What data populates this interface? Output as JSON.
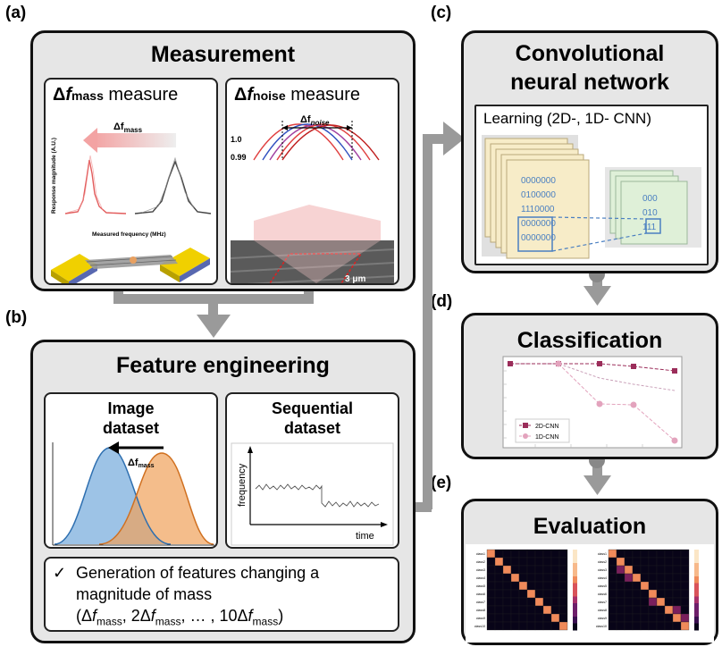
{
  "panel_labels": {
    "a": "(a)",
    "b": "(b)",
    "c": "(c)",
    "d": "(d)",
    "e": "(e)"
  },
  "measurement": {
    "title": "Measurement",
    "mass_card": {
      "delta": "Δ",
      "f": "f",
      "sub": "mass",
      "word": "measure",
      "plot_ylabel": "Response magnitude (A.U.)",
      "plot_xlabel": "Measured frequency (MHz)",
      "plot_arrow_label": "Δf",
      "plot_arrow_sub": "mass"
    },
    "noise_card": {
      "delta": "Δ",
      "f": "f",
      "sub": "noise",
      "word": "measure",
      "ytick_1": "1.0",
      "ytick_2": "0.99",
      "arrow_label": "Δf",
      "arrow_sub": "noise",
      "scale_bar": "3 μm"
    }
  },
  "feature_engineering": {
    "title": "Feature engineering",
    "image_card": {
      "title_line1": "Image",
      "title_line2": "dataset",
      "arrow_label": "Δf",
      "arrow_sub": "mass"
    },
    "sequential_card": {
      "title_line1": "Sequential",
      "title_line2": "dataset",
      "ylabel": "frequency",
      "xlabel": "time"
    },
    "generation": {
      "check": "✓",
      "line1": "Generation of features changing a",
      "line2": "magnitude of mass",
      "line3_open": "(Δ",
      "line3_f1": "f",
      "line3_sub1": "mass",
      "line3_mid": ", 2Δ",
      "line3_f2": "f",
      "line3_sub2": "mass",
      "line3_mid2": ", … , 10Δ",
      "line3_f3": "f",
      "line3_sub3": "mass",
      "line3_close": ")"
    }
  },
  "cnn": {
    "title_line1": "Convolutional",
    "title_line2": "neural network",
    "learning_label": "Learning (2D-, 1D- CNN)",
    "matrix_rows": [
      "0000000",
      "0100000",
      "1110000",
      "0000000",
      "0000000"
    ],
    "kernel_rows": [
      "000",
      "010",
      "111"
    ]
  },
  "classification": {
    "title": "Classification",
    "legend": [
      "2D-CNN",
      "1D-CNN"
    ]
  },
  "evaluation": {
    "title": "Evaluation",
    "row_labels": [
      "class1",
      "class2",
      "class3",
      "class4",
      "class5",
      "class6",
      "class7",
      "class8",
      "class9",
      "class10"
    ]
  },
  "colors": {
    "panel_bg": "#e6e6e6",
    "connector": "#9a9a9a",
    "series_2d": "#9b2d5a",
    "series_1d": "#e3a3bd",
    "hist_blue": "#5b9bd5",
    "hist_orange": "#f0a15a",
    "matrix_text": "#4a7fc1"
  }
}
